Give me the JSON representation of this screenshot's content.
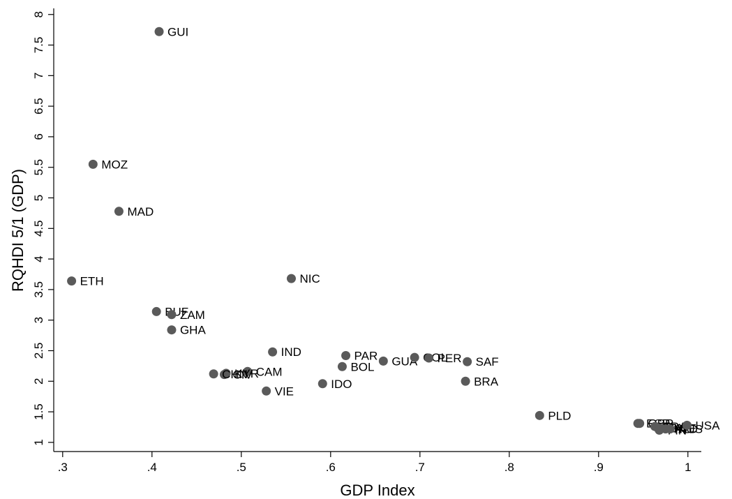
{
  "chart_data": {
    "type": "scatter",
    "xlabel": "GDP Index",
    "ylabel": "RQHDI 5/1 (GDP)",
    "xlim": [
      0.29,
      1.015
    ],
    "ylim": [
      0.85,
      8.1
    ],
    "xticks": [
      {
        "value": 0.3,
        "label": ".3"
      },
      {
        "value": 0.4,
        "label": ".4"
      },
      {
        "value": 0.5,
        "label": ".5"
      },
      {
        "value": 0.6,
        "label": ".6"
      },
      {
        "value": 0.7,
        "label": ".7"
      },
      {
        "value": 0.8,
        "label": ".8"
      },
      {
        "value": 0.9,
        "label": ".9"
      },
      {
        "value": 1.0,
        "label": "1"
      }
    ],
    "yticks": [
      {
        "value": 1,
        "label": "1"
      },
      {
        "value": 1.5,
        "label": "1.5"
      },
      {
        "value": 2,
        "label": "2"
      },
      {
        "value": 2.5,
        "label": "2.5"
      },
      {
        "value": 3,
        "label": "3"
      },
      {
        "value": 3.5,
        "label": "3.5"
      },
      {
        "value": 4,
        "label": "4"
      },
      {
        "value": 4.5,
        "label": "4.5"
      },
      {
        "value": 5,
        "label": "5"
      },
      {
        "value": 5.5,
        "label": "5.5"
      },
      {
        "value": 6,
        "label": "6"
      },
      {
        "value": 6.5,
        "label": "6.5"
      },
      {
        "value": 7,
        "label": "7"
      },
      {
        "value": 7.5,
        "label": "7.5"
      },
      {
        "value": 8,
        "label": "8"
      }
    ],
    "marker_color": "#5a5a5a",
    "grid": false,
    "points": [
      {
        "label": "GUI",
        "x": 0.408,
        "y": 7.72
      },
      {
        "label": "MOZ",
        "x": 0.334,
        "y": 5.55
      },
      {
        "label": "MAD",
        "x": 0.363,
        "y": 4.78
      },
      {
        "label": "ETH",
        "x": 0.31,
        "y": 3.64
      },
      {
        "label": "NIC",
        "x": 0.556,
        "y": 3.68
      },
      {
        "label": "BUF",
        "x": 0.405,
        "y": 3.14
      },
      {
        "label": "ZAM",
        "x": 0.422,
        "y": 3.09
      },
      {
        "label": "GHA",
        "x": 0.422,
        "y": 2.84
      },
      {
        "label": "IND",
        "x": 0.535,
        "y": 2.48
      },
      {
        "label": "PAR",
        "x": 0.617,
        "y": 2.42
      },
      {
        "label": "GUA",
        "x": 0.659,
        "y": 2.33
      },
      {
        "label": "COL",
        "x": 0.694,
        "y": 2.39
      },
      {
        "label": "PER",
        "x": 0.71,
        "y": 2.38
      },
      {
        "label": "SAF",
        "x": 0.753,
        "y": 2.32
      },
      {
        "label": "BOL",
        "x": 0.613,
        "y": 2.24
      },
      {
        "label": "CAM",
        "x": 0.507,
        "y": 2.16
      },
      {
        "label": "KYR",
        "x": 0.483,
        "y": 2.13
      },
      {
        "label": "CIV",
        "x": 0.481,
        "y": 2.11
      },
      {
        "label": "CHN",
        "x": 0.469,
        "y": 2.12
      },
      {
        "label": "IDO",
        "x": 0.591,
        "y": 1.96
      },
      {
        "label": "BRA",
        "x": 0.751,
        "y": 2.0
      },
      {
        "label": "VIE",
        "x": 0.528,
        "y": 1.84
      },
      {
        "label": "PLD",
        "x": 0.834,
        "y": 1.44
      },
      {
        "label": "ESP",
        "x": 0.944,
        "y": 1.31
      },
      {
        "label": "GBR",
        "x": 0.946,
        "y": 1.31
      },
      {
        "label": "FRA",
        "x": 0.963,
        "y": 1.26
      },
      {
        "label": "ITA",
        "x": 0.966,
        "y": 1.24
      },
      {
        "label": "SWE",
        "x": 0.97,
        "y": 1.23
      },
      {
        "label": "FIN",
        "x": 0.968,
        "y": 1.2
      },
      {
        "label": "NLD",
        "x": 0.975,
        "y": 1.22
      },
      {
        "label": "AUS",
        "x": 0.98,
        "y": 1.22
      },
      {
        "label": "USA",
        "x": 0.999,
        "y": 1.28
      }
    ]
  }
}
